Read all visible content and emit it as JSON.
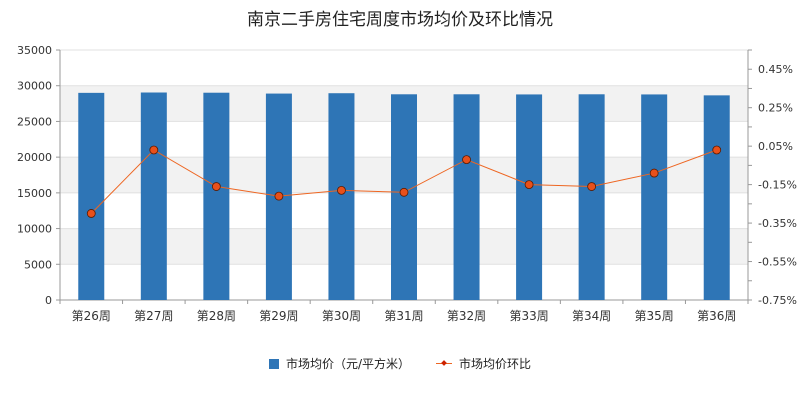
{
  "chart_data": {
    "type": "bar",
    "title": "南京二手房住宅周度市场均价及环比情况",
    "categories": [
      "第26周",
      "第27周",
      "第28周",
      "第29周",
      "第30周",
      "第31周",
      "第32周",
      "第33周",
      "第34周",
      "第35周",
      "第36周"
    ],
    "series": [
      {
        "name": "市场均价（元/平方米）",
        "type": "bar",
        "axis": "left",
        "color": "#2e75b6",
        "values": [
          29000,
          29050,
          29020,
          28900,
          28950,
          28800,
          28800,
          28780,
          28800,
          28780,
          28650
        ]
      },
      {
        "name": "市场均价环比",
        "type": "line",
        "axis": "right",
        "color": "#ee6622",
        "marker_color": "#e8501a",
        "unit": "%",
        "values": [
          -0.3,
          0.03,
          -0.16,
          -0.21,
          -0.18,
          -0.19,
          -0.02,
          -0.15,
          -0.16,
          -0.09,
          0.03
        ]
      }
    ],
    "y_left": {
      "ylim": [
        0,
        35000
      ],
      "ticks": [
        "0",
        "5000",
        "10000",
        "15000",
        "20000",
        "25000",
        "30000",
        "35000"
      ]
    },
    "y_right": {
      "ylim": [
        -0.75,
        0.55
      ],
      "ticks": [
        "-0.75%",
        "-0.55%",
        "-0.35%",
        "-0.15%",
        "0.05%",
        "0.25%",
        "0.45%"
      ]
    },
    "grid": "horizontal bands",
    "legend": "bottom-center"
  },
  "legend": {
    "bar_label": "市场均价（元/平方米）",
    "line_label": "市场均价环比"
  }
}
